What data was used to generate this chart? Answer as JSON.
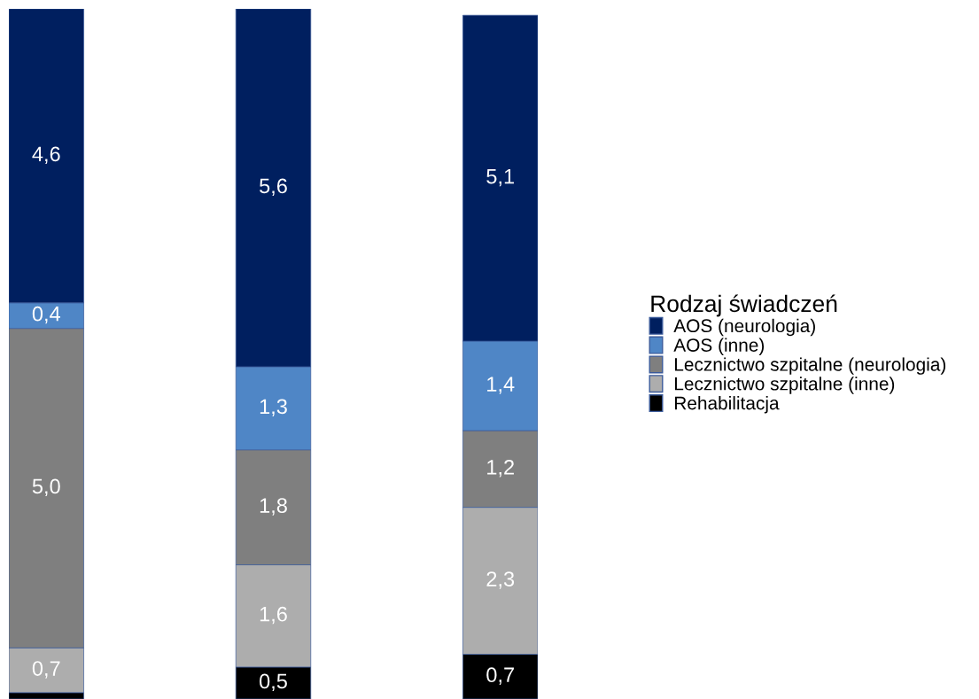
{
  "chart_data": {
    "type": "bar",
    "stacked": true,
    "categories": [
      null,
      null,
      null
    ],
    "legend_title": "Rodzaj świadczeń",
    "legend": "right",
    "tick_labels": false,
    "series": [
      {
        "name": "Rehabilitacja",
        "color": "#000000",
        "values": [
          0.1,
          0.5,
          0.7
        ],
        "value_labels": [
          null,
          "0,5",
          "0,7"
        ]
      },
      {
        "name": "Lecznictwo szpitalne (inne)",
        "color": "#adadad",
        "values": [
          0.7,
          1.6,
          2.3
        ],
        "value_labels": [
          "0,7",
          "1,6",
          "2,3"
        ]
      },
      {
        "name": "Lecznictwo szpitalne (neurologia)",
        "color": "#7f7f7f",
        "values": [
          5.0,
          1.8,
          1.2
        ],
        "value_labels": [
          "5,0",
          "1,8",
          "1,2"
        ]
      },
      {
        "name": "AOS (inne)",
        "color": "#4f86c6",
        "values": [
          0.4,
          1.3,
          1.4
        ],
        "value_labels": [
          "0,4",
          "1,3",
          "1,4"
        ]
      },
      {
        "name": "AOS (neurologia)",
        "color": "#001f5f",
        "values": [
          4.6,
          5.6,
          5.1
        ],
        "value_labels": [
          "4,6",
          "5,6",
          "5,1"
        ]
      }
    ]
  }
}
